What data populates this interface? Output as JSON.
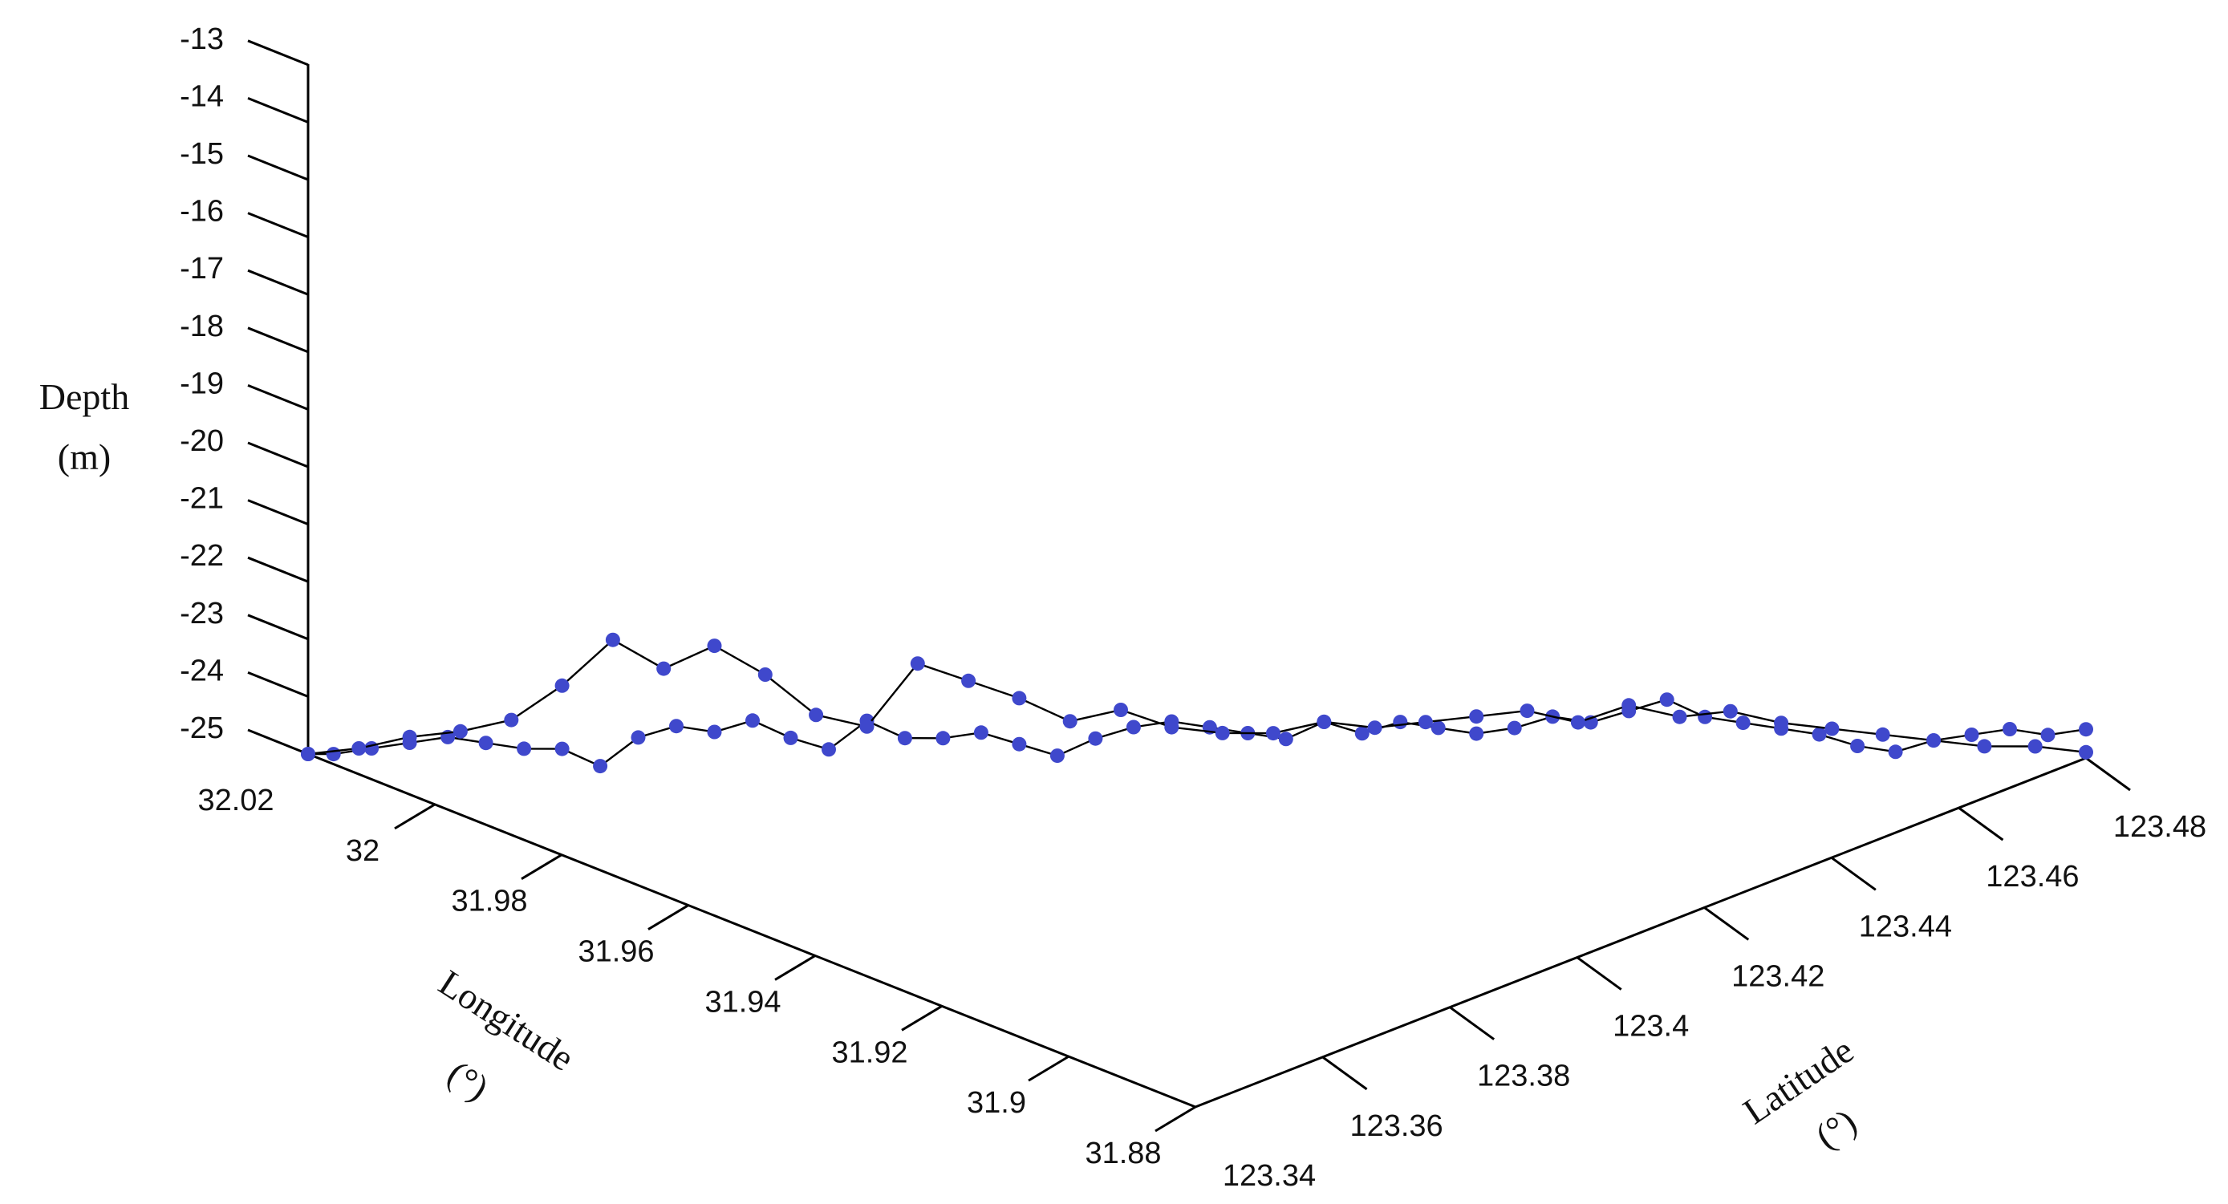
{
  "chart_data": {
    "type": "line",
    "projection": "3d",
    "zlabel": [
      "Depth",
      "(m)"
    ],
    "xlabel": [
      "Longitude",
      "(°)"
    ],
    "ylabel": [
      "Latitude",
      "(°)"
    ],
    "z_ticks": [
      "-13",
      "-14",
      "-15",
      "-16",
      "-17",
      "-18",
      "-19",
      "-20",
      "-21",
      "-22",
      "-23",
      "-24",
      "-25"
    ],
    "x_ticks": [
      "32.02",
      "32",
      "31.98",
      "31.96",
      "31.94",
      "31.92",
      "31.9",
      "31.88"
    ],
    "y_ticks": [
      "123.34",
      "123.36",
      "123.38",
      "123.4",
      "123.42",
      "123.44",
      "123.46",
      "123.48"
    ],
    "zlim": [
      -25,
      -13
    ],
    "xlim": [
      31.88,
      32.02
    ],
    "ylim": [
      123.34,
      123.48
    ],
    "marker_color": "#3f48cc",
    "line_color": "#000000",
    "series": [
      {
        "x": [
          32.02,
          32.018,
          32.015,
          32.012,
          32.009,
          32.006,
          32.003,
          32.0,
          31.997,
          31.994,
          31.991,
          31.988,
          31.985,
          31.982,
          31.979,
          31.976,
          31.973,
          31.97,
          31.967,
          31.964,
          31.961,
          31.958,
          31.955,
          31.952,
          31.949,
          31.946,
          31.943,
          31.94,
          31.937,
          31.934,
          31.931,
          31.928,
          31.925,
          31.922,
          31.919,
          31.916,
          31.913,
          31.91,
          31.907,
          31.904,
          31.901,
          31.898,
          31.895,
          31.892,
          31.889,
          31.886,
          31.883,
          31.88
        ],
        "y": [
          123.34,
          123.342,
          123.345,
          123.348,
          123.351,
          123.354,
          123.357,
          123.36,
          123.363,
          123.366,
          123.369,
          123.372,
          123.375,
          123.378,
          123.381,
          123.384,
          123.387,
          123.39,
          123.393,
          123.396,
          123.399,
          123.402,
          123.405,
          123.408,
          123.411,
          123.414,
          123.417,
          123.42,
          123.423,
          123.426,
          123.429,
          123.432,
          123.435,
          123.438,
          123.441,
          123.444,
          123.447,
          123.45,
          123.453,
          123.456,
          123.459,
          123.462,
          123.465,
          123.468,
          123.471,
          123.474,
          123.477,
          123.48
        ],
        "z": [
          -25.0,
          -25.0,
          -24.9,
          -24.8,
          -24.7,
          -24.8,
          -24.9,
          -24.9,
          -25.2,
          -24.7,
          -24.5,
          -24.6,
          -24.4,
          -24.7,
          -24.9,
          -24.4,
          -24.7,
          -24.7,
          -24.6,
          -24.8,
          -25.0,
          -24.7,
          -24.5,
          -24.4,
          -24.5,
          -24.6,
          -24.7,
          -24.4,
          -24.6,
          -24.4,
          -24.5,
          -24.6,
          -24.5,
          -24.3,
          -24.4,
          -24.2,
          -24.0,
          -24.3,
          -24.4,
          -24.5,
          -24.6,
          -24.8,
          -24.9,
          -24.7,
          -24.6,
          -24.5,
          -24.6,
          -24.5
        ]
      },
      {
        "x": [
          32.02,
          32.016,
          32.012,
          32.008,
          32.004,
          32.0,
          31.996,
          31.992,
          31.988,
          31.984,
          31.98,
          31.976,
          31.972,
          31.968,
          31.964,
          31.96,
          31.956,
          31.952,
          31.948,
          31.944,
          31.94,
          31.936,
          31.932,
          31.928,
          31.924,
          31.92,
          31.916,
          31.912,
          31.908,
          31.904,
          31.9,
          31.896,
          31.892,
          31.888,
          31.884,
          31.88
        ],
        "y": [
          123.34,
          123.344,
          123.348,
          123.352,
          123.356,
          123.36,
          123.364,
          123.368,
          123.372,
          123.376,
          123.38,
          123.384,
          123.388,
          123.392,
          123.396,
          123.4,
          123.404,
          123.408,
          123.412,
          123.416,
          123.42,
          123.424,
          123.428,
          123.432,
          123.436,
          123.44,
          123.444,
          123.448,
          123.452,
          123.456,
          123.46,
          123.464,
          123.468,
          123.472,
          123.476,
          123.48
        ],
        "z": [
          -25.0,
          -24.9,
          -24.7,
          -24.6,
          -24.4,
          -23.8,
          -23.0,
          -23.5,
          -23.1,
          -23.6,
          -24.3,
          -24.5,
          -23.4,
          -23.7,
          -24.0,
          -24.4,
          -24.2,
          -24.5,
          -24.6,
          -24.6,
          -24.4,
          -24.5,
          -24.4,
          -24.3,
          -24.2,
          -24.4,
          -24.1,
          -24.3,
          -24.2,
          -24.4,
          -24.5,
          -24.6,
          -24.7,
          -24.8,
          -24.8,
          -24.9
        ]
      }
    ]
  }
}
